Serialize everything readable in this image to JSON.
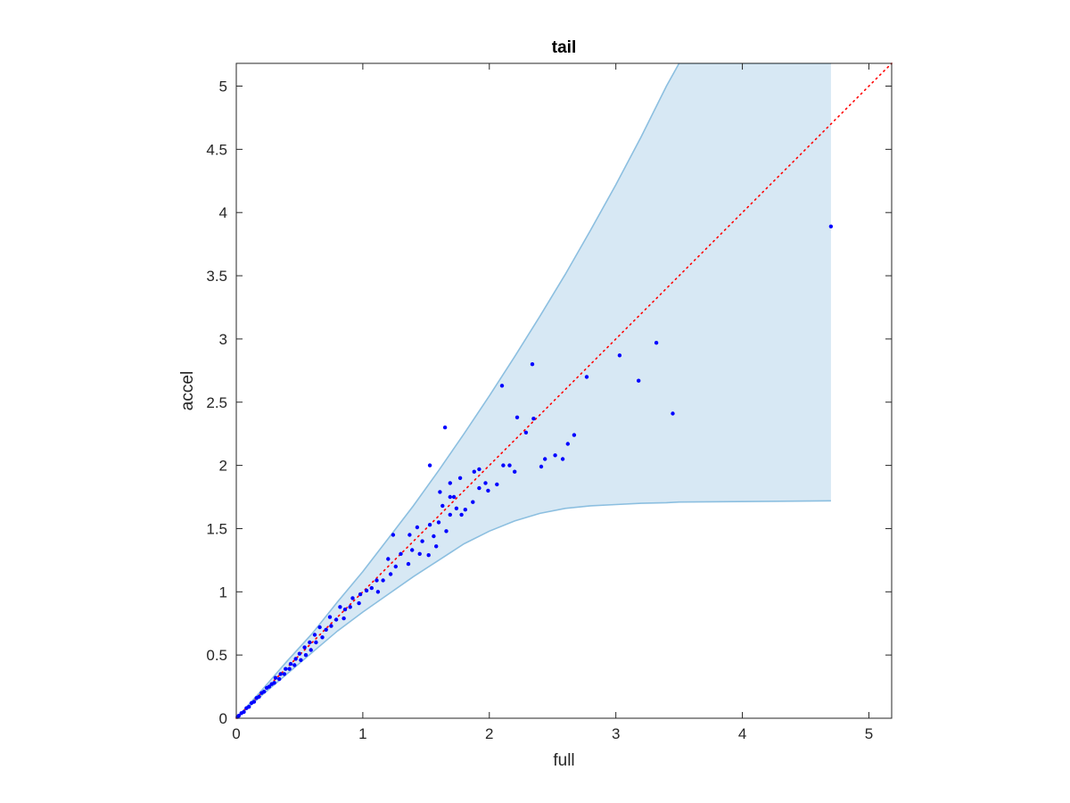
{
  "chart_data": {
    "type": "scatter",
    "title": "tail",
    "xlabel": "full",
    "ylabel": "accel",
    "xlim": [
      0,
      5.18
    ],
    "ylim": [
      0,
      5.18
    ],
    "xticks": [
      0,
      1,
      2,
      3,
      4,
      5
    ],
    "xtick_labels": [
      "0",
      "1",
      "2",
      "3",
      "4",
      "5"
    ],
    "yticks": [
      0,
      0.5,
      1,
      1.5,
      2,
      2.5,
      3,
      3.5,
      4,
      4.5,
      5
    ],
    "ytick_labels": [
      "0",
      "0.5",
      "1",
      "1.5",
      "2",
      "2.5",
      "3",
      "3.5",
      "4",
      "4.5",
      "5"
    ],
    "grid": false,
    "colors": {
      "points": "#0000ff",
      "reference_line": "#ff0000",
      "band_fill": "#d7e8f4",
      "band_edge": "#8cbfe0",
      "axes": "#262626"
    },
    "reference_line": {
      "style": "dotted",
      "x": [
        0,
        5.18
      ],
      "y": [
        0,
        5.18
      ]
    },
    "band": {
      "x": [
        0,
        0.2,
        0.4,
        0.6,
        0.8,
        1.0,
        1.2,
        1.4,
        1.6,
        1.8,
        2.0,
        2.2,
        2.4,
        2.6,
        2.8,
        3.0,
        3.2,
        3.4,
        3.5,
        4.7
      ],
      "upper": [
        0,
        0.22,
        0.45,
        0.67,
        0.92,
        1.16,
        1.42,
        1.68,
        1.96,
        2.25,
        2.55,
        2.86,
        3.18,
        3.51,
        3.86,
        4.22,
        4.6,
        5.0,
        5.18,
        5.18
      ],
      "lower": [
        0,
        0.18,
        0.35,
        0.52,
        0.69,
        0.84,
        0.98,
        1.12,
        1.25,
        1.38,
        1.48,
        1.56,
        1.62,
        1.66,
        1.68,
        1.69,
        1.7,
        1.705,
        1.71,
        1.72
      ]
    },
    "series": [
      {
        "points": [
          [
            4.7,
            3.89
          ],
          [
            3.45,
            2.41
          ],
          [
            3.32,
            2.97
          ],
          [
            3.18,
            2.67
          ],
          [
            3.03,
            2.87
          ],
          [
            2.77,
            2.7
          ],
          [
            2.34,
            2.8
          ],
          [
            2.1,
            2.63
          ],
          [
            2.22,
            2.38
          ],
          [
            2.35,
            2.37
          ],
          [
            2.29,
            2.26
          ],
          [
            1.65,
            2.3
          ],
          [
            1.53,
            2.0
          ],
          [
            2.67,
            2.24
          ],
          [
            2.62,
            2.17
          ],
          [
            2.52,
            2.08
          ],
          [
            2.58,
            2.05
          ],
          [
            2.44,
            2.05
          ],
          [
            2.41,
            1.99
          ],
          [
            2.16,
            2.0
          ],
          [
            2.11,
            2.0
          ],
          [
            2.2,
            1.95
          ],
          [
            1.88,
            1.95
          ],
          [
            1.92,
            1.97
          ],
          [
            1.77,
            1.9
          ],
          [
            1.69,
            1.86
          ],
          [
            1.97,
            1.86
          ],
          [
            2.06,
            1.85
          ],
          [
            1.99,
            1.8
          ],
          [
            1.92,
            1.82
          ],
          [
            1.72,
            1.75
          ],
          [
            1.69,
            1.75
          ],
          [
            1.87,
            1.71
          ],
          [
            1.81,
            1.65
          ],
          [
            1.74,
            1.66
          ],
          [
            1.61,
            1.79
          ],
          [
            1.63,
            1.68
          ],
          [
            1.69,
            1.61
          ],
          [
            1.78,
            1.61
          ],
          [
            1.6,
            1.55
          ],
          [
            1.53,
            1.53
          ],
          [
            1.66,
            1.48
          ],
          [
            1.56,
            1.44
          ],
          [
            1.43,
            1.51
          ],
          [
            1.47,
            1.4
          ],
          [
            1.37,
            1.45
          ],
          [
            1.24,
            1.45
          ],
          [
            1.58,
            1.36
          ],
          [
            1.52,
            1.29
          ],
          [
            1.45,
            1.3
          ],
          [
            1.39,
            1.33
          ],
          [
            1.3,
            1.3
          ],
          [
            1.36,
            1.22
          ],
          [
            1.26,
            1.2
          ],
          [
            1.2,
            1.26
          ],
          [
            1.22,
            1.14
          ],
          [
            1.16,
            1.09
          ],
          [
            1.11,
            1.09
          ],
          [
            1.07,
            1.03
          ],
          [
            1.03,
            1.01
          ],
          [
            1.12,
            1.0
          ],
          [
            0.98,
            0.98
          ],
          [
            0.97,
            0.91
          ],
          [
            0.92,
            0.95
          ],
          [
            0.9,
            0.88
          ],
          [
            0.86,
            0.86
          ],
          [
            0.82,
            0.88
          ],
          [
            0.85,
            0.79
          ],
          [
            0.79,
            0.78
          ],
          [
            0.74,
            0.8
          ],
          [
            0.75,
            0.73
          ],
          [
            0.71,
            0.7
          ],
          [
            0.66,
            0.72
          ],
          [
            0.68,
            0.64
          ],
          [
            0.62,
            0.66
          ],
          [
            0.63,
            0.6
          ],
          [
            0.58,
            0.6
          ],
          [
            0.59,
            0.54
          ],
          [
            0.54,
            0.56
          ],
          [
            0.55,
            0.5
          ],
          [
            0.5,
            0.51
          ],
          [
            0.51,
            0.46
          ],
          [
            0.47,
            0.47
          ],
          [
            0.46,
            0.42
          ],
          [
            0.43,
            0.43
          ],
          [
            0.42,
            0.39
          ],
          [
            0.39,
            0.39
          ],
          [
            0.38,
            0.35
          ],
          [
            0.35,
            0.35
          ],
          [
            0.34,
            0.31
          ],
          [
            0.31,
            0.32
          ],
          [
            0.3,
            0.28
          ],
          [
            0.28,
            0.27
          ],
          [
            0.26,
            0.25
          ],
          [
            0.24,
            0.24
          ],
          [
            0.22,
            0.21
          ],
          [
            0.2,
            0.2
          ],
          [
            0.18,
            0.17
          ],
          [
            0.16,
            0.16
          ],
          [
            0.14,
            0.13
          ],
          [
            0.12,
            0.12
          ],
          [
            0.1,
            0.09
          ],
          [
            0.08,
            0.08
          ],
          [
            0.06,
            0.05
          ],
          [
            0.04,
            0.04
          ],
          [
            0.02,
            0.02
          ],
          [
            0.01,
            0.01
          ]
        ]
      }
    ]
  }
}
